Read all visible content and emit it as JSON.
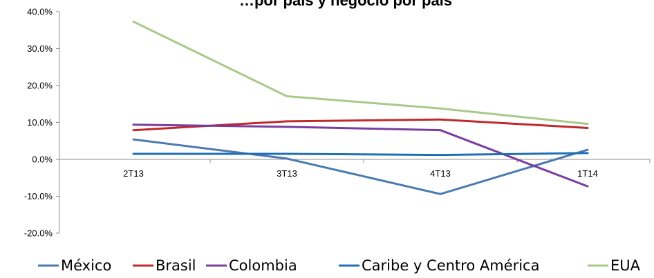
{
  "chart_data": {
    "type": "line",
    "title": "…por país y negocio por país",
    "categories": [
      "2T13",
      "3T13",
      "4T13",
      "1T14"
    ],
    "ylim": [
      -20,
      40
    ],
    "yticks": [
      "40.0%",
      "30.0%",
      "20.0%",
      "10.0%",
      "0.0%",
      "-10.0%",
      "-20.0%"
    ],
    "grid": false,
    "legend_position": "bottom",
    "series": [
      {
        "name": "México",
        "color": "#4a7ab0",
        "values": [
          5.4,
          0.2,
          -9.4,
          2.6
        ]
      },
      {
        "name": "Brasil",
        "color": "#c0282a",
        "values": [
          7.9,
          10.3,
          10.8,
          8.5
        ]
      },
      {
        "name": "Colombia",
        "color": "#7a3da0",
        "values": [
          9.4,
          8.8,
          7.9,
          -7.3
        ]
      },
      {
        "name": "Caribe y Centro América",
        "color": "#1f6fb5",
        "values": [
          1.5,
          1.5,
          1.2,
          1.7
        ]
      },
      {
        "name": "EUA",
        "color": "#a9c98a",
        "values": [
          37.3,
          17.1,
          13.8,
          9.6
        ]
      }
    ]
  }
}
